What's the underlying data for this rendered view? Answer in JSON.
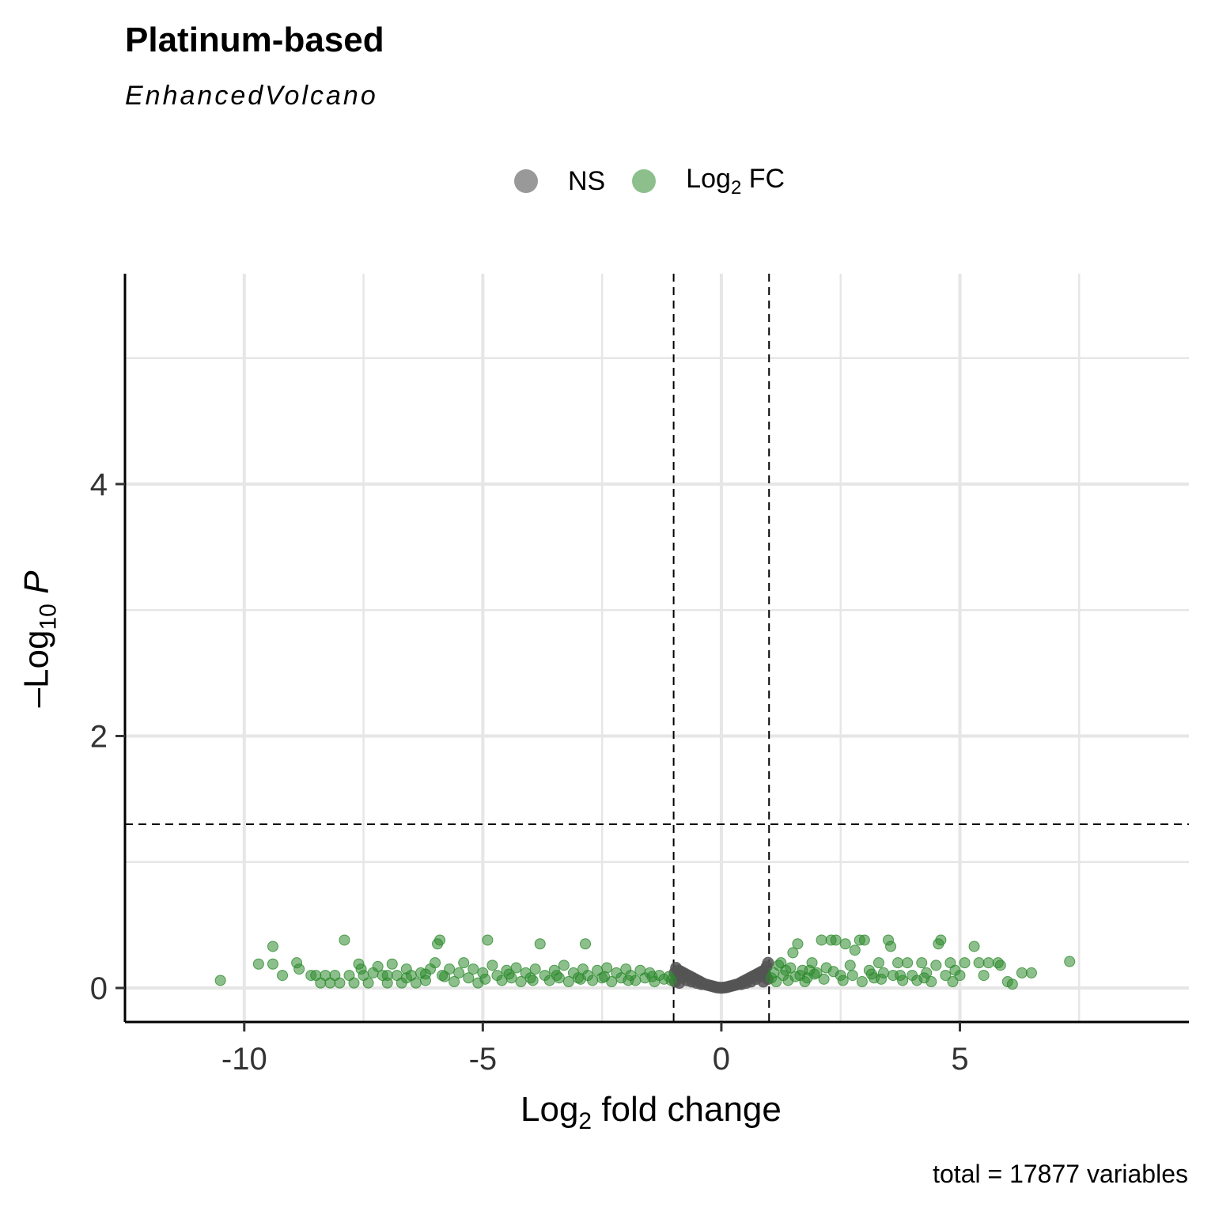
{
  "title": "Platinum-based",
  "subtitle": "EnhancedVolcano",
  "legend": [
    {
      "label": "NS",
      "sub": "",
      "suffix": "",
      "color": "#555555"
    },
    {
      "label": "Log",
      "sub": "2",
      "suffix": " FC",
      "color": "#2e8b2e"
    }
  ],
  "caption": "total = 17877 variables",
  "chart_data": {
    "type": "scatter",
    "title": "Platinum-based",
    "subtitle": "EnhancedVolcano",
    "xlabel": {
      "base": "Log",
      "sub": "2",
      "rest": " fold change"
    },
    "ylabel": {
      "prefix": "–Log",
      "sub": "10",
      "italic": " P"
    },
    "xlim": [
      -12.5,
      9.8
    ],
    "ylim": [
      -0.27,
      5.67
    ],
    "x_ticks": [
      -10,
      -5,
      0,
      5
    ],
    "x_tick_labels": [
      "-10",
      "-5",
      "0",
      "5"
    ],
    "y_ticks": [
      0,
      2,
      4
    ],
    "y_tick_labels": [
      "0",
      "2",
      "4"
    ],
    "fc_cutoff": [
      -1,
      1
    ],
    "p_cutoff_log10": 1.3,
    "grid": true,
    "legend_position": "top",
    "series": [
      {
        "name": "NS",
        "color": "#555555",
        "points": [
          [
            -0.95,
            0.16
          ],
          [
            -0.9,
            0.14
          ],
          [
            -0.85,
            0.13
          ],
          [
            -0.8,
            0.12
          ],
          [
            -0.75,
            0.11
          ],
          [
            -0.7,
            0.1
          ],
          [
            -0.65,
            0.09
          ],
          [
            -0.6,
            0.08
          ],
          [
            -0.55,
            0.07
          ],
          [
            -0.5,
            0.06
          ],
          [
            -0.45,
            0.05
          ],
          [
            -0.4,
            0.04
          ],
          [
            -0.35,
            0.03
          ],
          [
            -0.3,
            0.025
          ],
          [
            -0.25,
            0.02
          ],
          [
            -0.2,
            0.015
          ],
          [
            -0.15,
            0.01
          ],
          [
            -0.1,
            0.005
          ],
          [
            -0.05,
            0.003
          ],
          [
            0,
            0.001
          ],
          [
            0.05,
            0.003
          ],
          [
            0.1,
            0.005
          ],
          [
            0.15,
            0.01
          ],
          [
            0.2,
            0.015
          ],
          [
            0.25,
            0.02
          ],
          [
            0.3,
            0.025
          ],
          [
            0.35,
            0.03
          ],
          [
            0.4,
            0.04
          ],
          [
            0.45,
            0.05
          ],
          [
            0.5,
            0.06
          ],
          [
            0.55,
            0.07
          ],
          [
            0.6,
            0.08
          ],
          [
            0.65,
            0.09
          ],
          [
            0.7,
            0.1
          ],
          [
            0.75,
            0.11
          ],
          [
            0.8,
            0.12
          ],
          [
            0.85,
            0.13
          ],
          [
            0.9,
            0.14
          ],
          [
            0.95,
            0.17
          ],
          [
            -0.92,
            0.1
          ],
          [
            -0.82,
            0.08
          ],
          [
            -0.72,
            0.06
          ],
          [
            -0.62,
            0.05
          ],
          [
            -0.52,
            0.04
          ],
          [
            -0.42,
            0.03
          ],
          [
            0.42,
            0.03
          ],
          [
            0.52,
            0.04
          ],
          [
            0.62,
            0.05
          ],
          [
            0.72,
            0.07
          ],
          [
            0.82,
            0.09
          ],
          [
            0.92,
            0.11
          ],
          [
            -0.97,
            0.05
          ],
          [
            -0.88,
            0.04
          ],
          [
            0.88,
            0.05
          ],
          [
            0.97,
            0.07
          ],
          [
            -0.98,
            0.12
          ],
          [
            0.98,
            0.2
          ]
        ]
      },
      {
        "name": "Log2 FC",
        "color": "#2e8b2e",
        "points": [
          [
            -10.5,
            0.06
          ],
          [
            -9.7,
            0.19
          ],
          [
            -9.4,
            0.33
          ],
          [
            -9.4,
            0.19
          ],
          [
            -9.2,
            0.1
          ],
          [
            -8.9,
            0.2
          ],
          [
            -8.85,
            0.15
          ],
          [
            -8.6,
            0.1
          ],
          [
            -8.5,
            0.1
          ],
          [
            -8.4,
            0.04
          ],
          [
            -8.3,
            0.1
          ],
          [
            -8.2,
            0.04
          ],
          [
            -8.1,
            0.1
          ],
          [
            -8.0,
            0.04
          ],
          [
            -7.9,
            0.38
          ],
          [
            -7.8,
            0.1
          ],
          [
            -7.7,
            0.04
          ],
          [
            -7.6,
            0.19
          ],
          [
            -7.55,
            0.15
          ],
          [
            -7.5,
            0.1
          ],
          [
            -7.4,
            0.04
          ],
          [
            -7.3,
            0.12
          ],
          [
            -7.2,
            0.17
          ],
          [
            -7.1,
            0.1
          ],
          [
            -7.0,
            0.04
          ],
          [
            -6.9,
            0.19
          ],
          [
            -6.8,
            0.1
          ],
          [
            -6.7,
            0.04
          ],
          [
            -6.6,
            0.15
          ],
          [
            -6.5,
            0.1
          ],
          [
            -6.4,
            0.04
          ],
          [
            -6.3,
            0.12
          ],
          [
            -6.2,
            0.06
          ],
          [
            -6.1,
            0.15
          ],
          [
            -6.0,
            0.2
          ],
          [
            -5.95,
            0.35
          ],
          [
            -5.9,
            0.38
          ],
          [
            -5.85,
            0.1
          ],
          [
            -5.7,
            0.15
          ],
          [
            -5.6,
            0.05
          ],
          [
            -5.5,
            0.12
          ],
          [
            -5.4,
            0.2
          ],
          [
            -5.3,
            0.08
          ],
          [
            -5.2,
            0.15
          ],
          [
            -5.1,
            0.04
          ],
          [
            -5.0,
            0.12
          ],
          [
            -4.9,
            0.38
          ],
          [
            -4.8,
            0.18
          ],
          [
            -4.7,
            0.1
          ],
          [
            -4.6,
            0.06
          ],
          [
            -4.5,
            0.14
          ],
          [
            -4.4,
            0.08
          ],
          [
            -4.3,
            0.16
          ],
          [
            -4.2,
            0.05
          ],
          [
            -4.1,
            0.12
          ],
          [
            -4.0,
            0.08
          ],
          [
            -3.9,
            0.15
          ],
          [
            -3.8,
            0.35
          ],
          [
            -3.7,
            0.1
          ],
          [
            -3.6,
            0.06
          ],
          [
            -3.5,
            0.14
          ],
          [
            -3.4,
            0.08
          ],
          [
            -3.3,
            0.18
          ],
          [
            -3.2,
            0.05
          ],
          [
            -3.1,
            0.12
          ],
          [
            -3.0,
            0.08
          ],
          [
            -2.9,
            0.15
          ],
          [
            -2.85,
            0.35
          ],
          [
            -2.8,
            0.1
          ],
          [
            -2.7,
            0.06
          ],
          [
            -2.6,
            0.14
          ],
          [
            -2.5,
            0.08
          ],
          [
            -2.4,
            0.16
          ],
          [
            -2.3,
            0.05
          ],
          [
            -2.2,
            0.12
          ],
          [
            -2.1,
            0.08
          ],
          [
            -2.0,
            0.15
          ],
          [
            -1.9,
            0.1
          ],
          [
            -1.8,
            0.06
          ],
          [
            -1.7,
            0.14
          ],
          [
            -1.6,
            0.08
          ],
          [
            -1.5,
            0.12
          ],
          [
            -1.4,
            0.05
          ],
          [
            -1.3,
            0.1
          ],
          [
            -1.2,
            0.07
          ],
          [
            -1.1,
            0.09
          ],
          [
            -1.05,
            0.06
          ],
          [
            -5.8,
            0.09
          ],
          [
            -4.95,
            0.07
          ],
          [
            -4.45,
            0.11
          ],
          [
            -3.95,
            0.06
          ],
          [
            -3.45,
            0.1
          ],
          [
            -2.95,
            0.07
          ],
          [
            -2.45,
            0.09
          ],
          [
            -1.95,
            0.06
          ],
          [
            -1.45,
            0.09
          ],
          [
            -6.6,
            0.08
          ],
          [
            -7.0,
            0.1
          ],
          [
            -6.2,
            0.11
          ],
          [
            1.05,
            0.08
          ],
          [
            1.1,
            0.12
          ],
          [
            1.2,
            0.18
          ],
          [
            1.3,
            0.1
          ],
          [
            1.4,
            0.06
          ],
          [
            1.5,
            0.28
          ],
          [
            1.6,
            0.35
          ],
          [
            1.7,
            0.14
          ],
          [
            1.8,
            0.08
          ],
          [
            1.9,
            0.2
          ],
          [
            2.0,
            0.12
          ],
          [
            2.1,
            0.38
          ],
          [
            2.2,
            0.16
          ],
          [
            2.3,
            0.38
          ],
          [
            2.4,
            0.38
          ],
          [
            2.5,
            0.1
          ],
          [
            2.6,
            0.35
          ],
          [
            2.7,
            0.18
          ],
          [
            2.8,
            0.3
          ],
          [
            2.9,
            0.38
          ],
          [
            3.0,
            0.38
          ],
          [
            3.1,
            0.14
          ],
          [
            3.2,
            0.08
          ],
          [
            3.3,
            0.2
          ],
          [
            3.4,
            0.12
          ],
          [
            3.5,
            0.38
          ],
          [
            3.55,
            0.33
          ],
          [
            3.6,
            0.1
          ],
          [
            3.7,
            0.2
          ],
          [
            3.8,
            0.06
          ],
          [
            3.9,
            0.2
          ],
          [
            4.0,
            0.1
          ],
          [
            4.1,
            0.06
          ],
          [
            4.2,
            0.2
          ],
          [
            4.3,
            0.12
          ],
          [
            4.4,
            0.05
          ],
          [
            4.5,
            0.18
          ],
          [
            4.55,
            0.35
          ],
          [
            4.6,
            0.38
          ],
          [
            4.7,
            0.1
          ],
          [
            4.8,
            0.2
          ],
          [
            4.85,
            0.05
          ],
          [
            4.9,
            0.14
          ],
          [
            5.0,
            0.1
          ],
          [
            5.1,
            0.2
          ],
          [
            5.3,
            0.33
          ],
          [
            5.4,
            0.2
          ],
          [
            5.5,
            0.1
          ],
          [
            5.6,
            0.2
          ],
          [
            5.8,
            0.2
          ],
          [
            5.85,
            0.18
          ],
          [
            6.0,
            0.05
          ],
          [
            6.1,
            0.03
          ],
          [
            6.3,
            0.12
          ],
          [
            6.5,
            0.12
          ],
          [
            7.3,
            0.21
          ],
          [
            1.15,
            0.05
          ],
          [
            1.35,
            0.14
          ],
          [
            1.55,
            0.09
          ],
          [
            1.75,
            0.05
          ],
          [
            1.95,
            0.11
          ],
          [
            2.15,
            0.07
          ],
          [
            2.35,
            0.13
          ],
          [
            2.55,
            0.06
          ],
          [
            2.75,
            0.1
          ],
          [
            2.95,
            0.05
          ],
          [
            3.15,
            0.11
          ],
          [
            3.35,
            0.07
          ],
          [
            3.75,
            0.1
          ],
          [
            4.25,
            0.08
          ],
          [
            1.25,
            0.2
          ],
          [
            1.45,
            0.16
          ],
          [
            1.65,
            0.1
          ],
          [
            1.85,
            0.14
          ]
        ]
      }
    ]
  }
}
